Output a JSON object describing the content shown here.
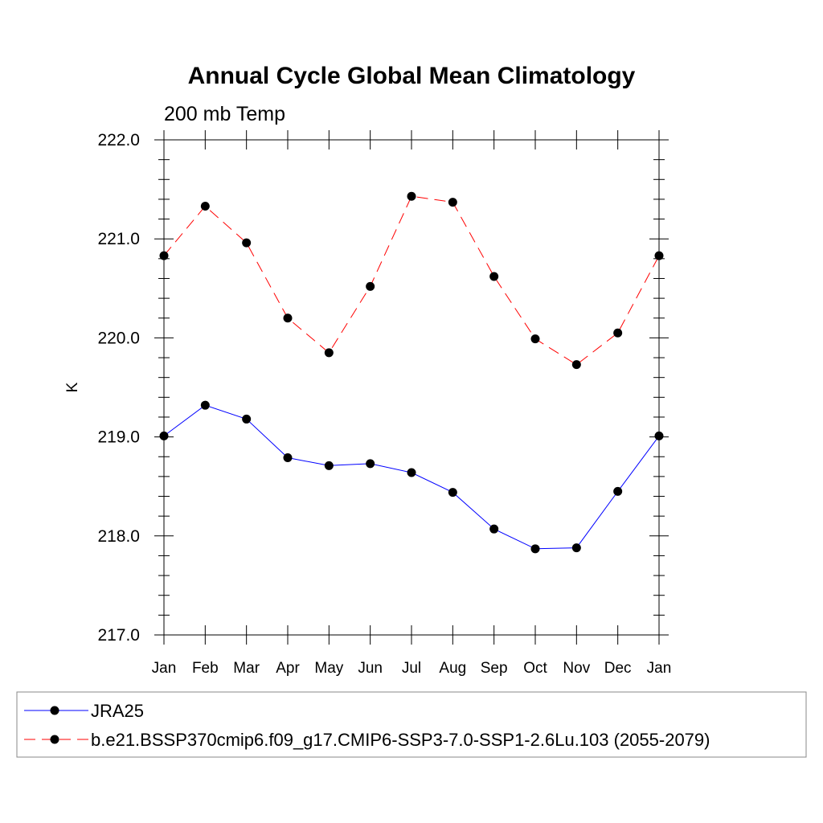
{
  "chart_data": {
    "type": "line",
    "title": "Annual Cycle Global Mean Climatology",
    "subtitle": "200 mb Temp",
    "ylabel": "K",
    "xlabel": "",
    "categories": [
      "Jan",
      "Feb",
      "Mar",
      "Apr",
      "May",
      "Jun",
      "Jul",
      "Aug",
      "Sep",
      "Oct",
      "Nov",
      "Dec",
      "Jan"
    ],
    "ylim": [
      217.0,
      222.0
    ],
    "yticks": [
      "217.0",
      "218.0",
      "219.0",
      "220.0",
      "221.0",
      "222.0"
    ],
    "grid": false,
    "legend_position": "bottom",
    "series": [
      {
        "name": "JRA25",
        "color": "#0000ff",
        "line_style": "solid",
        "marker": "filled-circle",
        "values": [
          219.01,
          219.32,
          219.18,
          218.79,
          218.71,
          218.73,
          218.64,
          218.44,
          218.07,
          217.87,
          217.88,
          218.45,
          219.01
        ]
      },
      {
        "name": "b.e21.BSSP370cmip6.f09_g17.CMIP6-SSP3-7.0-SSP1-2.6Lu.103 (2055-2079)",
        "color": "#ff0000",
        "line_style": "dashed",
        "marker": "filled-circle",
        "values": [
          220.83,
          221.33,
          220.96,
          220.2,
          219.85,
          220.52,
          221.43,
          221.37,
          220.62,
          219.99,
          219.73,
          220.05,
          220.83
        ]
      }
    ]
  }
}
